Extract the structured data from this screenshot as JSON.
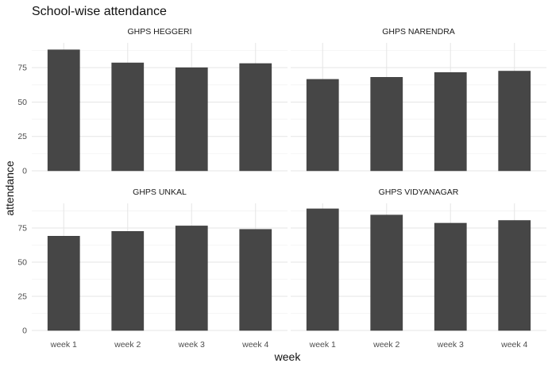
{
  "chart_data": {
    "type": "bar",
    "title": "School-wise attendance",
    "xlabel": "week",
    "ylabel": "attendance",
    "categories": [
      "week 1",
      "week 2",
      "week 3",
      "week 4"
    ],
    "ylim": [
      0,
      93
    ],
    "yticks": [
      "0",
      "25",
      "50",
      "75"
    ],
    "grid": true,
    "facets": [
      {
        "name": "GHPS HEGGERI",
        "values": [
          88,
          78.5,
          75,
          78
        ]
      },
      {
        "name": "GHPS NARENDRA",
        "values": [
          66.5,
          68,
          71.5,
          72.5
        ]
      },
      {
        "name": "GHPS UNKAL",
        "values": [
          69,
          72.5,
          76.5,
          74
        ]
      },
      {
        "name": "GHPS VIDYANAGAR",
        "values": [
          89,
          84.5,
          78.5,
          80.5
        ]
      }
    ],
    "bar_color": "#464646"
  }
}
